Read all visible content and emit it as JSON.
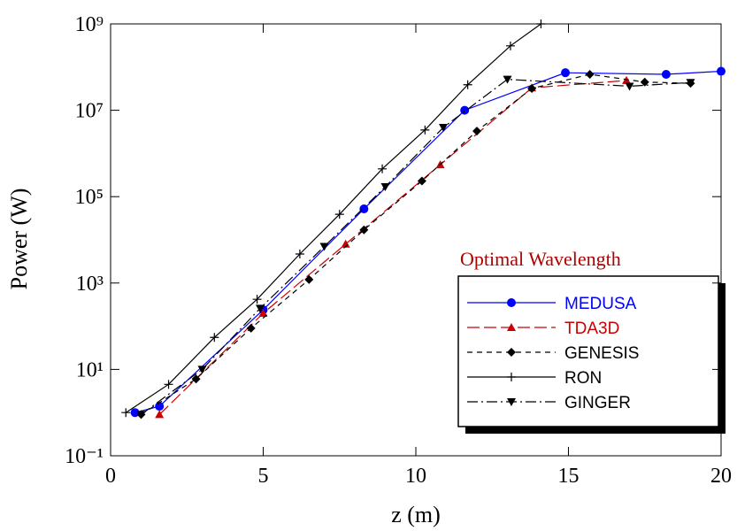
{
  "chart_data": {
    "type": "line",
    "x_label": "z (m)",
    "y_label": "Power (W)",
    "legend_title": "Optimal Wavelength",
    "xlim": [
      0,
      20
    ],
    "xticks": [
      0,
      5,
      10,
      15,
      20
    ],
    "ylim": [
      0.1,
      1000000000
    ],
    "log_y": true,
    "yticks": [
      {
        "value": 0.1,
        "label": "10⁻¹"
      },
      {
        "value": 10,
        "label": "10¹"
      },
      {
        "value": 1000,
        "label": "10³"
      },
      {
        "value": 100000,
        "label": "10⁵"
      },
      {
        "value": 10000000,
        "label": "10⁷"
      },
      {
        "value": 1000000000,
        "label": "10⁹"
      }
    ],
    "series": [
      {
        "name": "MEDUSA",
        "color": "#0000ff",
        "dash": "solid",
        "marker": "circle",
        "x": [
          0.8,
          1.6,
          5.0,
          8.3,
          11.6,
          14.9,
          18.2,
          20
        ],
        "values": [
          1,
          1.4,
          240,
          52000,
          10000000,
          74000000,
          68000000,
          80000000
        ]
      },
      {
        "name": "TDA3D",
        "color": "#cc0000",
        "dash": "long",
        "marker": "triangle",
        "x": [
          1.6,
          5.0,
          7.7,
          10.8,
          13.8,
          16.9
        ],
        "values": [
          0.9,
          200,
          8000,
          550000,
          33000000,
          49000000
        ]
      },
      {
        "name": "GENESIS",
        "color": "#000000",
        "dash": "short",
        "marker": "diamond",
        "x": [
          1.0,
          2.8,
          4.6,
          6.5,
          8.3,
          10.2,
          12.0,
          13.8,
          15.7,
          17.5,
          19.0
        ],
        "values": [
          0.9,
          6,
          90,
          1200,
          17000,
          230000,
          3300000,
          32000000,
          68000000,
          45000000,
          42000000
        ]
      },
      {
        "name": "RON",
        "color": "#000000",
        "dash": "solid",
        "marker": "plus",
        "x": [
          0.5,
          1.9,
          3.4,
          4.8,
          6.2,
          7.5,
          8.9,
          10.3,
          11.7,
          13.1,
          14.1
        ],
        "values": [
          1,
          4.5,
          55,
          420,
          4700,
          39000,
          440000,
          3500000,
          39000000,
          310000000,
          1000000000
        ]
      },
      {
        "name": "GINGER",
        "color": "#000000",
        "dash": "dashdot",
        "marker": "tridown",
        "x": [
          1.0,
          3.0,
          4.9,
          7.0,
          9.0,
          10.9,
          13.0,
          17.0,
          19.0
        ],
        "values": [
          0.9,
          10,
          260,
          7000,
          170000,
          4000000,
          52000000,
          36000000,
          44000000
        ]
      }
    ]
  }
}
